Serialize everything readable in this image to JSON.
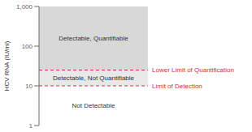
{
  "chart_data": {
    "type": "zones",
    "title": "",
    "ylabel": "HCV RNA (IU/ml)",
    "log": "y",
    "ylim": [
      1,
      1000
    ],
    "yticks": [
      1,
      10,
      100,
      {
        "value": 1000,
        "label": "1,000"
      }
    ],
    "tick_labels": "y",
    "zones": [
      {
        "label": "Detectable, Quantifiable",
        "range": [
          25,
          1000
        ],
        "color": "#d8d8d8"
      },
      {
        "label": "Detectable, Not Quantifiable",
        "range": [
          10,
          25
        ],
        "color": "#e8e8e8"
      },
      {
        "label": "Not Detectable",
        "range": [
          1,
          10
        ],
        "color": "#ffffff"
      }
    ],
    "lines": [
      {
        "value": 25,
        "label": "Lower Limit of Quantification",
        "color": "#cc3333",
        "line_style": "dashed"
      },
      {
        "value": 10,
        "label": "Limit of Detection",
        "color": "#cc3333",
        "line_style": "dashed"
      }
    ]
  }
}
